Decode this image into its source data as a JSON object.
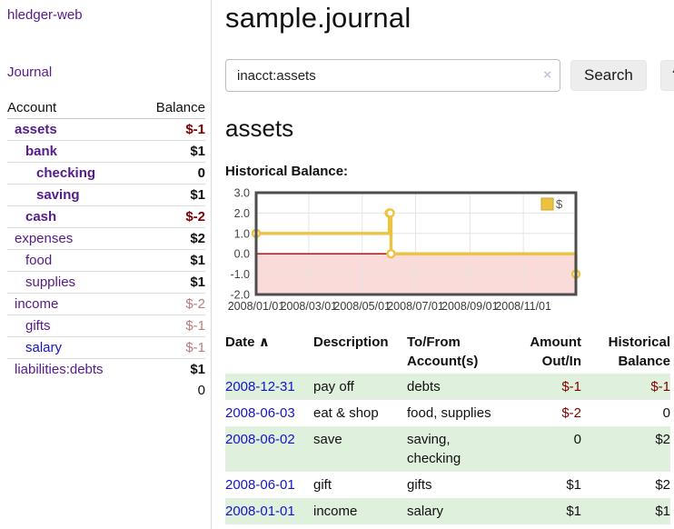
{
  "sidebar": {
    "app_title": "hledger-web",
    "journal_link": "Journal",
    "accounts_table": {
      "headers": {
        "account": "Account",
        "balance": "Balance"
      },
      "rows": [
        {
          "name": "assets",
          "balance": "$-1",
          "level": 0,
          "bold": true,
          "balance_bold": true,
          "balance_style": "neg-strong",
          "link": "purple"
        },
        {
          "name": "bank",
          "balance": "$1",
          "level": 1,
          "bold": true,
          "balance_bold": true,
          "balance_style": "",
          "link": "purple"
        },
        {
          "name": "checking",
          "balance": "0",
          "level": 2,
          "bold": true,
          "balance_bold": true,
          "balance_style": "",
          "link": "purple"
        },
        {
          "name": "saving",
          "balance": "$1",
          "level": 2,
          "bold": true,
          "balance_bold": true,
          "balance_style": "",
          "link": "purple"
        },
        {
          "name": "cash",
          "balance": "$-2",
          "level": 1,
          "bold": true,
          "balance_bold": true,
          "balance_style": "neg-strong",
          "link": "purple"
        },
        {
          "name": "expenses",
          "balance": "$2",
          "level": 0,
          "bold": false,
          "balance_bold": true,
          "balance_style": "",
          "link": "purple"
        },
        {
          "name": "food",
          "balance": "$1",
          "level": 1,
          "bold": false,
          "balance_bold": true,
          "balance_style": "",
          "link": "purple"
        },
        {
          "name": "supplies",
          "balance": "$1",
          "level": 1,
          "bold": false,
          "balance_bold": true,
          "balance_style": "",
          "link": "purple"
        },
        {
          "name": "income",
          "balance": "$-2",
          "level": 0,
          "bold": false,
          "balance_bold": false,
          "balance_style": "neg-soft",
          "link": "purple"
        },
        {
          "name": "gifts",
          "balance": "$-1",
          "level": 1,
          "bold": false,
          "balance_bold": false,
          "balance_style": "neg-soft",
          "link": "purple"
        },
        {
          "name": "salary",
          "balance": "$-1",
          "level": 1,
          "bold": false,
          "balance_bold": false,
          "balance_style": "neg-soft",
          "link": "blue"
        },
        {
          "name": "liabilities:debts",
          "balance": "$1",
          "level": 0,
          "bold": false,
          "balance_bold": true,
          "balance_style": "",
          "link": "purple"
        }
      ],
      "total": "0"
    }
  },
  "main": {
    "title": "sample.journal",
    "search": {
      "value": "inacct:assets",
      "clear_icon": "×",
      "search_button": "Search",
      "help_button": "?"
    },
    "account_heading": "assets",
    "chart_title": "Historical Balance:"
  },
  "chart_data": {
    "type": "line",
    "step": true,
    "title": "Historical Balance",
    "series": [
      {
        "name": "$",
        "color": "#edc240",
        "points": [
          [
            "2008-01-01",
            1
          ],
          [
            "2008-06-01",
            2
          ],
          [
            "2008-06-02",
            2
          ],
          [
            "2008-06-03",
            0
          ],
          [
            "2008-12-31",
            -1
          ]
        ]
      }
    ],
    "xrange": [
      "2008-01-01",
      "2008-12-31"
    ],
    "ylim": [
      -2,
      3
    ],
    "yticks": [
      "3.0",
      "2.0",
      "1.0",
      "0.0",
      "-1.0",
      "-2.0"
    ],
    "xticks": [
      "2008/01/01",
      "2008/03/01",
      "2008/05/01",
      "2008/07/01",
      "2008/09/01",
      "2008/11/01"
    ],
    "grid": true,
    "legend_position": "top-right",
    "legend_label": "$",
    "negative_region_color": "#fbdada",
    "zero_line_color": "#a40000",
    "border_color": "#4d4d4d",
    "grid_color": "#e5e5e5"
  },
  "register_table": {
    "headers": {
      "date": "Date",
      "description": "Description",
      "accounts": "To/From Account(s)",
      "amount": "Amount Out/In",
      "balance": "Historical Balance"
    },
    "sort_icon": "∧",
    "rows": [
      {
        "date": "2008-12-31",
        "description": "pay off",
        "accounts": "debts",
        "amount": "$-1",
        "amount_style": "neg-strong",
        "balance": "$-1",
        "balance_style": "neg-strong"
      },
      {
        "date": "2008-06-03",
        "description": "eat & shop",
        "accounts": "food, supplies",
        "amount": "$-2",
        "amount_style": "neg-strong",
        "balance": "0",
        "balance_style": ""
      },
      {
        "date": "2008-06-02",
        "description": "save",
        "accounts": "saving, checking",
        "amount": "0",
        "amount_style": "",
        "balance": "$2",
        "balance_style": ""
      },
      {
        "date": "2008-06-01",
        "description": "gift",
        "accounts": "gifts",
        "amount": "$1",
        "amount_style": "",
        "balance": "$2",
        "balance_style": ""
      },
      {
        "date": "2008-01-01",
        "description": "income",
        "accounts": "salary",
        "amount": "$1",
        "amount_style": "",
        "balance": "$1",
        "balance_style": ""
      }
    ]
  }
}
